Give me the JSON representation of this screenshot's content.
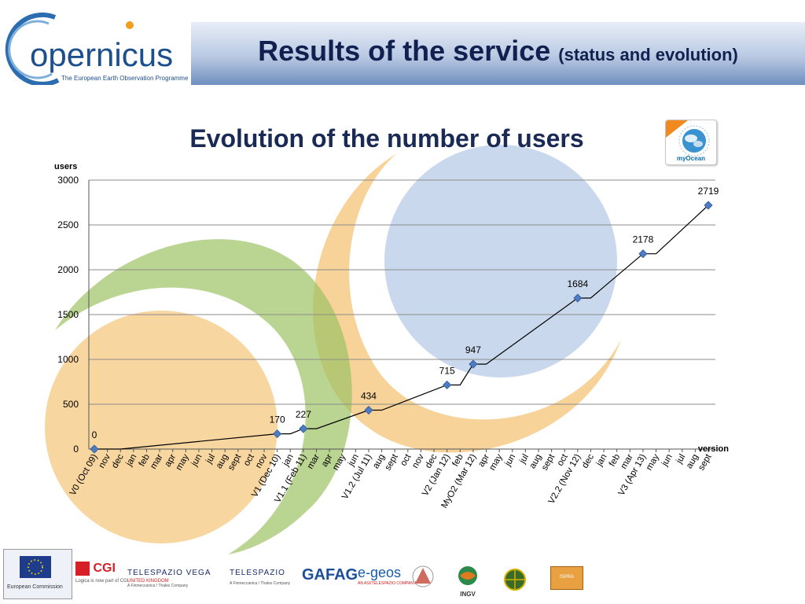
{
  "header": {
    "logo_text": "opernicus",
    "logo_tagline": "The European Earth Observation Programme",
    "title_main": "Results of the service",
    "title_sub": "(status and evolution)"
  },
  "badge": {
    "label": "myOcean"
  },
  "colors": {
    "title_blue": "#10204f",
    "marker": "#4f7cc0",
    "line": "#000000",
    "grid": "#8c8c8c",
    "deco_orange": "#f5c477",
    "deco_green": "#9cc264",
    "deco_blue": "#b7cbe5"
  },
  "chart_data": {
    "type": "line",
    "title": "Evolution of the number of users",
    "ylabel": "users",
    "xlabel": "version",
    "ylim": [
      0,
      3000
    ],
    "yticks": [
      0,
      500,
      1000,
      1500,
      2000,
      2500,
      3000
    ],
    "grid": true,
    "categories": [
      "V0 (Oct 09)",
      "nov",
      "dec",
      "jan",
      "feb",
      "mar",
      "apr",
      "may",
      "jun",
      "jul",
      "aug",
      "sept",
      "oct",
      "nov",
      "V1 (Dec 10)",
      "jan",
      "V1.1 (Feb 11)",
      "mar",
      "apr",
      "may",
      "jun",
      "V1.2 (Jul 11)",
      "aug",
      "sept",
      "oct",
      "nov",
      "dec",
      "V2 (Jan 12)",
      "feb",
      "MyO2 (Mar 12)",
      "apr",
      "may",
      "jun",
      "jul",
      "aug",
      "sept",
      "oct",
      "V2.2 (Nov 12)",
      "dec",
      "jan",
      "feb",
      "mar",
      "V3 (Apr 13)",
      "may",
      "jun",
      "jul",
      "aug",
      "sept"
    ],
    "series": [
      {
        "values": [
          0,
          null,
          0,
          null,
          null,
          null,
          null,
          null,
          null,
          null,
          null,
          null,
          null,
          null,
          170,
          170,
          227,
          227,
          null,
          null,
          null,
          434,
          434,
          null,
          null,
          null,
          null,
          715,
          715,
          947,
          947,
          null,
          null,
          null,
          null,
          null,
          null,
          1684,
          1684,
          null,
          null,
          null,
          2178,
          2178,
          null,
          null,
          null,
          2719
        ]
      }
    ],
    "points": [
      {
        "category": "V0 (Oct 09)",
        "value": 0,
        "label": "0"
      },
      {
        "category": "V1 (Dec 10)",
        "value": 170,
        "label": "170"
      },
      {
        "category": "V1.1 (Feb 11)",
        "value": 227,
        "label": "227"
      },
      {
        "category": "V1.2 (Jul 11)",
        "value": 434,
        "label": "434"
      },
      {
        "category": "V2 (Jan 12)",
        "value": 715,
        "label": "715"
      },
      {
        "category": "MyO2 (Mar 12)",
        "value": 947,
        "label": "947"
      },
      {
        "category": "V2.2 (Nov 12)",
        "value": 1684,
        "label": "1684"
      },
      {
        "category": "V3 (Apr 13)",
        "value": 2178,
        "label": "2178"
      },
      {
        "category": "sept",
        "value": 2719,
        "label": "2719"
      }
    ]
  },
  "partners": [
    {
      "name": "European Commission",
      "caption": "European Commission"
    },
    {
      "name": "CGI",
      "caption": "Logica is now part of CGI"
    },
    {
      "name": "TELESPAZIO VEGA",
      "caption": "UNITED KINGDOM",
      "caption2": "A Finmeccanica / Thales Company"
    },
    {
      "name": "TELESPAZIO",
      "caption": "A Finmeccanica / Thales Company"
    },
    {
      "name": "GAFAG",
      "caption": ""
    },
    {
      "name": "e-geos",
      "caption": "AN ASI/TELESPAZIO COMPANY"
    },
    {
      "name": "ISPRA",
      "caption": ""
    },
    {
      "name": "INGV",
      "caption": ""
    }
  ]
}
